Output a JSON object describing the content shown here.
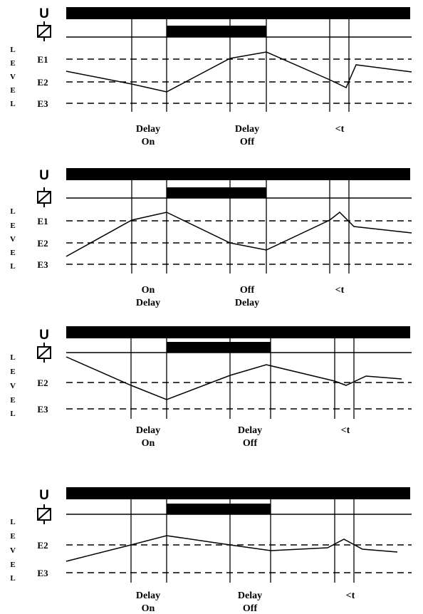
{
  "supply_label": "U",
  "relay_symbol": "relay-coil-icon",
  "level_letters": [
    "L",
    "E",
    "V",
    "E",
    "L"
  ],
  "diagrams": [
    {
      "level_labels": [
        "E1",
        "E2",
        "E3"
      ],
      "time_labels": [
        {
          "lines": [
            "Delay",
            "On"
          ]
        },
        {
          "lines": [
            "Delay",
            "Off"
          ]
        },
        {
          "lines": [
            "<t"
          ]
        }
      ]
    },
    {
      "level_labels": [
        "E1",
        "E2",
        "E3"
      ],
      "time_labels": [
        {
          "lines": [
            "On",
            "Delay"
          ]
        },
        {
          "lines": [
            "Off",
            "Delay"
          ]
        },
        {
          "lines": [
            "<t"
          ]
        }
      ]
    },
    {
      "level_labels": [
        "E2",
        "E3"
      ],
      "time_labels": [
        {
          "lines": [
            "Delay",
            "On"
          ]
        },
        {
          "lines": [
            "Delay",
            "Off"
          ]
        },
        {
          "lines": [
            "<t"
          ]
        }
      ]
    },
    {
      "level_labels": [
        "E2",
        "E3"
      ],
      "time_labels": [
        {
          "lines": [
            "Delay",
            "On"
          ]
        },
        {
          "lines": [
            "Delay",
            "Off"
          ]
        },
        {
          "lines": [
            "<t"
          ]
        }
      ]
    }
  ]
}
